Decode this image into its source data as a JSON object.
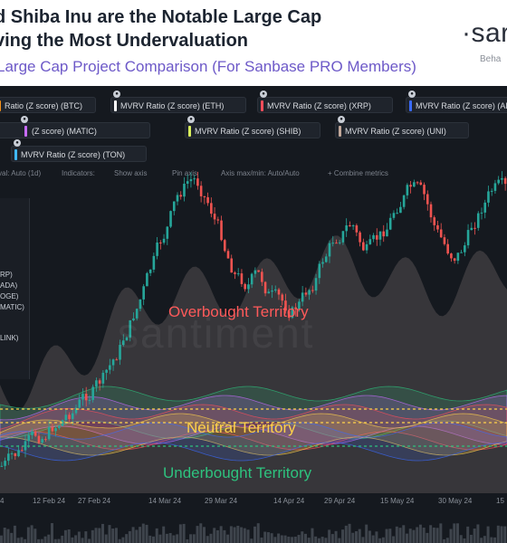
{
  "header": {
    "title_line1": "d Shiba Inu are the Notable Large Cap",
    "title_line2": "ving the Most Undervaluation",
    "subtitle": "Large Cap Project Comparison (For Sanbase PRO Members)",
    "logo_text": "·sar",
    "logo_tag": "Beha"
  },
  "legend": {
    "row1": [
      {
        "label": "Ratio (Z score) (BTC)",
        "color": "#f7931a"
      },
      {
        "label": "MVRV Ratio (Z score) (ETH)",
        "color": "#ffffff"
      },
      {
        "label": "MVRV Ratio (Z score) (XRP)",
        "color": "#ff4d5a"
      },
      {
        "label": "MVRV Ratio (Z score) (AD",
        "color": "#3a6bff"
      }
    ],
    "row2": [
      {
        "label": "(Z score) (MATIC)",
        "color": "#c76bff"
      },
      {
        "label": "MVRV Ratio (Z score) (SHIB)",
        "color": "#d9ef5b"
      },
      {
        "label": "MVRV Ratio (Z score) (UNI)",
        "color": "#c2a89a"
      }
    ],
    "row3": [
      {
        "label": "MVRV Ratio (Z score) (TON)",
        "color": "#3fb8ff"
      }
    ]
  },
  "toolbar": {
    "interval": "val: Auto (1d)",
    "indicators": "Indicators:",
    "show_axis": "Show axis",
    "pin_axis": "Pin axis",
    "axis_minmax": "Axis max/min: Auto/Auto",
    "combine": "+ Combine metrics"
  },
  "side_panel": {
    "items": [
      "RP)",
      "ADA)",
      "OGE)",
      "MATIC)",
      "LINK)"
    ]
  },
  "zones": {
    "overbought": "Overbought Territory",
    "neutral": "Neutral Territory",
    "underbought": "Underbought Territory",
    "watermark": "santiment"
  },
  "x_axis": {
    "ticks": [
      "4",
      "12 Feb 24",
      "27 Feb 24",
      "14 Mar 24",
      "29 Mar 24",
      "14 Apr 24",
      "29 Apr 24",
      "15 May 24",
      "30 May 24",
      "15"
    ]
  },
  "colors": {
    "overbought": "#ff5a5a",
    "neutral": "#ffd24a",
    "underbought": "#2ec27e",
    "price_up": "#26a69a",
    "price_down": "#ef5350",
    "background": "#15191f"
  }
}
